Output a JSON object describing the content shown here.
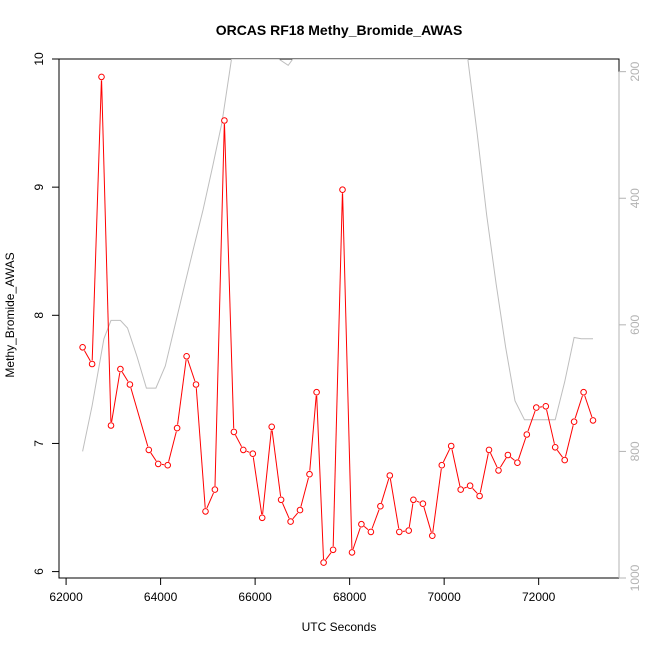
{
  "chart_data": {
    "type": "line",
    "title": "ORCAS RF18 Methy_Bromide_AWAS",
    "xlabel": "UTC Seconds",
    "ylabel": "Methy_Bromide_AWAS",
    "xlim": [
      61850,
      73700
    ],
    "ylim": [
      5.95,
      10.0
    ],
    "x_ticks": [
      "62000",
      "64000",
      "66000",
      "68000",
      "70000",
      "72000"
    ],
    "y_ticks": [
      "6",
      "7",
      "8",
      "9",
      "10"
    ],
    "y2_ticks": [
      "200",
      "400",
      "600",
      "800",
      "1000"
    ],
    "y2lim": [
      1000,
      180
    ],
    "colors": {
      "series": "#ff0000",
      "pressure": "#bebebe"
    },
    "series": [
      {
        "x": [
          62350,
          62550,
          62750,
          62950,
          63150,
          63350,
          63750,
          63950,
          64150,
          64350,
          64550,
          64750,
          64950,
          65150,
          65350,
          65550,
          65750,
          65950,
          66150,
          66350,
          66550,
          66750,
          66950,
          67150,
          67300,
          67450,
          67650,
          67850,
          68050,
          68250,
          68450,
          68650,
          68850,
          69050,
          69250,
          69350,
          69550,
          69750,
          69950,
          70150,
          70350,
          70550,
          70750,
          70950,
          71150,
          71350,
          71550,
          71750,
          71950,
          72150,
          72350,
          72550,
          72750,
          72950,
          73150
        ],
        "y": [
          7.75,
          7.62,
          9.86,
          7.14,
          7.58,
          7.46,
          6.95,
          6.84,
          6.83,
          7.12,
          7.68,
          7.46,
          6.47,
          6.64,
          9.52,
          7.09,
          6.95,
          6.92,
          6.42,
          7.13,
          6.56,
          6.39,
          6.48,
          6.76,
          7.4,
          6.07,
          6.17,
          8.98,
          6.15,
          6.37,
          6.31,
          6.51,
          6.75,
          6.31,
          6.32,
          6.56,
          6.53,
          6.28,
          6.83,
          6.98,
          6.64,
          6.67,
          6.59,
          6.95,
          6.79,
          6.91,
          6.85,
          7.07,
          7.28,
          7.29,
          6.97,
          6.87,
          7.17,
          7.4,
          7.18
        ]
      },
      {
        "x": [
          62350,
          62550,
          62800,
          62950,
          63150,
          63300,
          63500,
          63700,
          63900,
          64100,
          64300,
          64500,
          64700,
          64900,
          65100,
          65300,
          65500,
          66500,
          66700,
          66800,
          68500,
          70500,
          70700,
          70900,
          71100,
          71300,
          71500,
          71700,
          71900,
          72100,
          72350,
          72550,
          72750,
          72900,
          73150
        ],
        "y": [
          800,
          728,
          622,
          593,
          593,
          605,
          650,
          700,
          700,
          665,
          602,
          540,
          478,
          418,
          350,
          280,
          180,
          180,
          190,
          180,
          180,
          180,
          298,
          427,
          535,
          635,
          720,
          750,
          750,
          750,
          750,
          690,
          620,
          622,
          622
        ]
      }
    ]
  }
}
